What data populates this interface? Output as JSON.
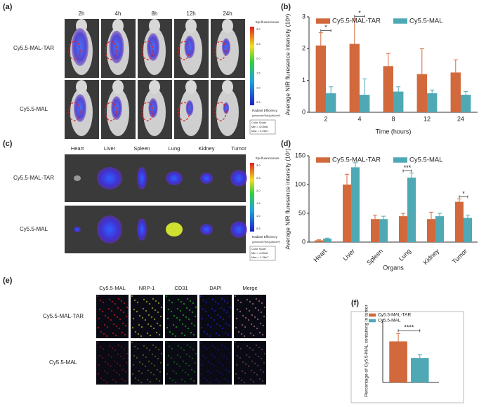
{
  "panels": {
    "a": {
      "label": "(a)",
      "times": [
        "2h",
        "4h",
        "8h",
        "12h",
        "24h"
      ],
      "rows": [
        "Cy5.5-MAL-TAR",
        "Cy5.5-MAL"
      ],
      "colorbar_title": "Epi-fluorescence",
      "colorbar_ticks": [
        "3.0",
        "2.5",
        "2.0",
        "1.5",
        "1.0",
        "0.5"
      ],
      "unit_title": "Radiant Efficiency",
      "unit": "(p/sec/cm²/sr)/(µW/cm²)",
      "scale_title": "Color Scale",
      "scale_min": "Min = 4.05e6",
      "scale_max": "Max = 3.25e7"
    },
    "b": {
      "label": "(b)"
    },
    "c": {
      "label": "(c)",
      "organs": [
        "Heart",
        "Liver",
        "Spleen",
        "Lung",
        "Kidney",
        "Tumor"
      ],
      "rows": [
        "Cy5.5-MAL-TAR",
        "Cy5.5-MAL"
      ],
      "colorbar_title": "Epi-fluorescence",
      "colorbar_ticks": [
        "3.0",
        "2.5",
        "2.0",
        "1.5",
        "1.0",
        "0.5"
      ],
      "unit_title": "Radiant Efficiency",
      "unit": "(p/sec/cm²/sr)/(µW/cm²)",
      "scale_title": "Color Scale",
      "scale_min": "Min = 4.05e6",
      "scale_max": "Max = 1.26e7"
    },
    "d": {
      "label": "(d)"
    },
    "e": {
      "label": "(e)",
      "stains": [
        "Cy5.5-MAL",
        "NRP-1",
        "CD31",
        "DAPI",
        "Merge"
      ],
      "rows": [
        "Cy5.5-MAL-TAR",
        "Cy5.5-MAL"
      ]
    },
    "f": {
      "label": "(f)"
    }
  },
  "chart_data": [
    {
      "type": "bar",
      "categories": [
        "2",
        "4",
        "8",
        "12",
        "24"
      ],
      "series": [
        {
          "name": "Cy5.5-MAL-TAR",
          "color": "#d2693c",
          "values": [
            2.1,
            2.15,
            1.45,
            1.2,
            1.25
          ],
          "errors": [
            0.4,
            0.8,
            0.4,
            0.8,
            0.4
          ]
        },
        {
          "name": "Cy5.5-MAL",
          "color": "#4fa9b5",
          "values": [
            0.6,
            0.55,
            0.65,
            0.6,
            0.55
          ],
          "errors": [
            0.2,
            0.5,
            0.15,
            0.1,
            0.1
          ]
        }
      ],
      "ylim": [
        0,
        3
      ],
      "yticks": [
        0,
        1,
        2,
        3
      ],
      "y_label": "Average NIR fluresence intensity (10⁸)",
      "x_label": "Time (hours)",
      "legend": "upper center",
      "annotations": [
        {
          "text": "*",
          "category": "2"
        },
        {
          "text": "*",
          "category": "4"
        }
      ]
    },
    {
      "type": "bar",
      "categories": [
        "Heart",
        "Liver",
        "Spleen",
        "Lung",
        "Kidney",
        "Tumor"
      ],
      "series": [
        {
          "name": "Cy5.5-MAL-TAR",
          "color": "#d2693c",
          "values": [
            3,
            100,
            40,
            45,
            40,
            70
          ],
          "errors": [
            1,
            18,
            7,
            5,
            12,
            5
          ]
        },
        {
          "name": "Cy5.5-MAL",
          "color": "#4fa9b5",
          "values": [
            6,
            130,
            40,
            112,
            45,
            42
          ],
          "errors": [
            1,
            8,
            5,
            8,
            5,
            5
          ]
        }
      ],
      "ylim": [
        0,
        150
      ],
      "yticks": [
        0,
        50,
        100,
        150
      ],
      "y_label": "Average NIR fluresence intensity (10⁷)",
      "x_label": "Organs",
      "legend": "upper center",
      "annotations": [
        {
          "text": "***",
          "category": "Lung"
        },
        {
          "text": "*",
          "category": "Tumor"
        }
      ]
    },
    {
      "type": "bar",
      "series": [
        {
          "name": "Cy5.5-MAL-TAR",
          "color": "#d2693c",
          "values": [
            26
          ],
          "errors": [
            5
          ]
        },
        {
          "name": "Cy5.5-MAL",
          "color": "#4fa9b5",
          "values": [
            15.5
          ],
          "errors": [
            2
          ]
        }
      ],
      "ylim": [
        0,
        40
      ],
      "y_label": "Percentage of Cy5.5-MAL containing in tumor",
      "legend": "upper left",
      "annotations": [
        {
          "text": "****"
        }
      ]
    }
  ]
}
